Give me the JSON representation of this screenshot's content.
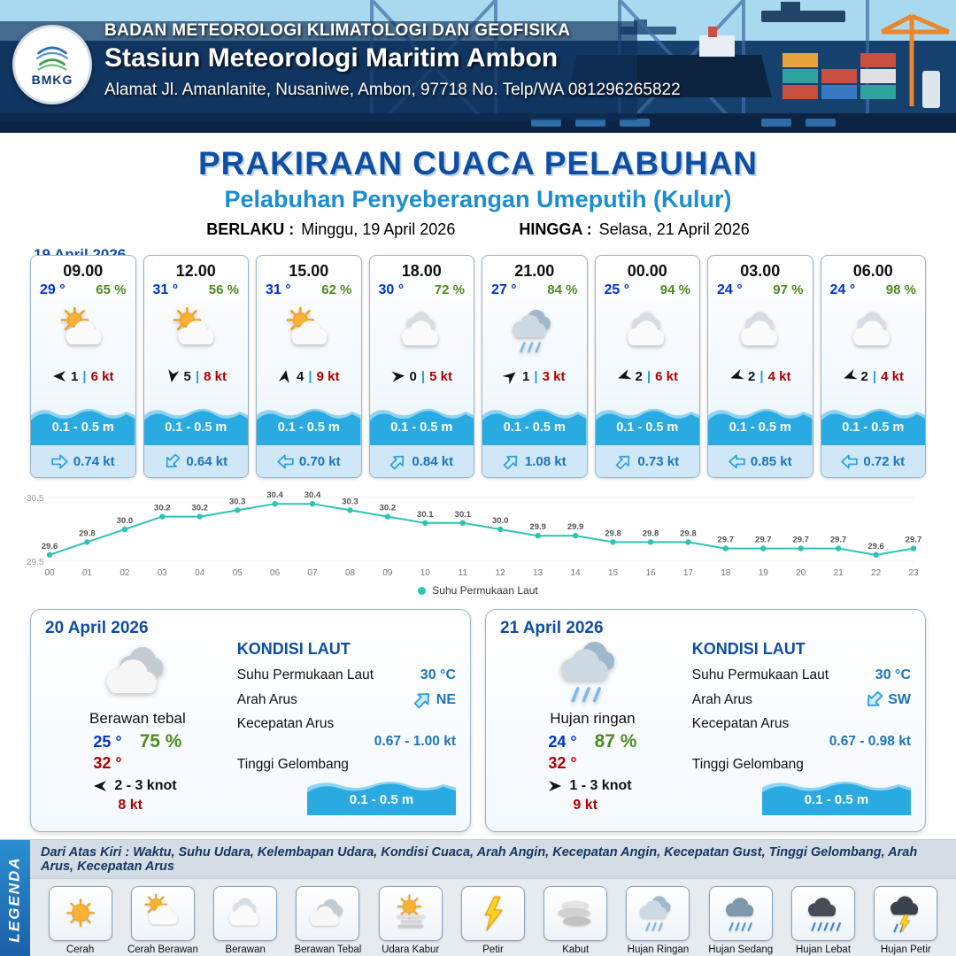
{
  "header": {
    "logo_text": "BMKG",
    "agency": "BADAN METEOROLOGI KLIMATOLOGI DAN GEOFISIKA",
    "station": "Stasiun Meteorologi Maritim Ambon",
    "address": "Alamat Jl. Amanlanite, Nusaniwe, Ambon, 97718   No. Telp/WA  081296265822"
  },
  "title": {
    "main": "PRAKIRAAN CUACA PELABUHAN",
    "subtitle": "Pelabuhan Penyeberangan Umeputih (Kulur)",
    "berlaku_label": "BERLAKU :",
    "berlaku_value": "Minggu, 19 April 2026",
    "hingga_label": "HINGGA :",
    "hingga_value": "Selasa, 21 April 2026",
    "forecast_date": "19 April 2026"
  },
  "hourly_cards": [
    {
      "time": "09.00",
      "temp": "29 °",
      "humidity": "65 %",
      "icon": "cerah-berawan",
      "wind_rot": 180,
      "wind_speed": "1",
      "gust": "6 kt",
      "wave": "0.1 - 0.5 m",
      "current_rot": 0,
      "current": "0.74 kt"
    },
    {
      "time": "12.00",
      "temp": "31 °",
      "humidity": "56 %",
      "icon": "cerah-berawan",
      "wind_rot": 100,
      "wind_speed": "5",
      "gust": "8 kt",
      "wave": "0.1 - 0.5 m",
      "current_rot": 135,
      "current": "0.64 kt"
    },
    {
      "time": "15.00",
      "temp": "31 °",
      "humidity": "62 %",
      "icon": "cerah-berawan",
      "wind_rot": -80,
      "wind_speed": "4",
      "gust": "9 kt",
      "wave": "0.1 - 0.5 m",
      "current_rot": 180,
      "current": "0.70 kt"
    },
    {
      "time": "18.00",
      "temp": "30 °",
      "humidity": "72 %",
      "icon": "berawan",
      "wind_rot": -5,
      "wind_speed": "0",
      "gust": "5 kt",
      "wave": "0.1 - 0.5 m",
      "current_rot": -45,
      "current": "0.84 kt"
    },
    {
      "time": "21.00",
      "temp": "27 °",
      "humidity": "84 %",
      "icon": "hujan-ringan",
      "wind_rot": -40,
      "wind_speed": "1",
      "gust": "3 kt",
      "wave": "0.1 - 0.5 m",
      "current_rot": -45,
      "current": "1.08 kt"
    },
    {
      "time": "00.00",
      "temp": "25 °",
      "humidity": "94 %",
      "icon": "berawan",
      "wind_rot": 160,
      "wind_speed": "2",
      "gust": "6 kt",
      "wave": "0.1 - 0.5 m",
      "current_rot": -45,
      "current": "0.73 kt"
    },
    {
      "time": "03.00",
      "temp": "24 °",
      "humidity": "97 %",
      "icon": "berawan",
      "wind_rot": 160,
      "wind_speed": "2",
      "gust": "4 kt",
      "wave": "0.1 - 0.5 m",
      "current_rot": 180,
      "current": "0.85 kt"
    },
    {
      "time": "06.00",
      "temp": "24 °",
      "humidity": "98 %",
      "icon": "berawan",
      "wind_rot": 160,
      "wind_speed": "2",
      "gust": "4 kt",
      "wave": "0.1 - 0.5 m",
      "current_rot": 180,
      "current": "0.72 kt"
    }
  ],
  "chart_data": {
    "type": "line",
    "legend": "Suhu Permukaan Laut",
    "x": [
      "00",
      "01",
      "02",
      "03",
      "04",
      "05",
      "06",
      "07",
      "08",
      "09",
      "10",
      "11",
      "12",
      "13",
      "14",
      "15",
      "16",
      "17",
      "18",
      "19",
      "20",
      "21",
      "22",
      "23"
    ],
    "values": [
      29.6,
      29.8,
      30.0,
      30.2,
      30.2,
      30.3,
      30.4,
      30.4,
      30.3,
      30.2,
      30.1,
      30.1,
      30.0,
      29.9,
      29.9,
      29.8,
      29.8,
      29.8,
      29.7,
      29.7,
      29.7,
      29.7,
      29.6,
      29.7
    ],
    "ylim": [
      29.5,
      30.5
    ],
    "line_color": "#2cc5b2",
    "grid": false,
    "legend_position": "bottom"
  },
  "daily_cards": [
    {
      "date": "20 April 2026",
      "icon": "berawan-tebal",
      "condition": "Berawan tebal",
      "temp_min": "25 °",
      "humidity": "75 %",
      "temp_max": "32 °",
      "wind_rot": 180,
      "wind_range": "2  - 3 knot",
      "gust": "8 kt",
      "sea": {
        "title": "KONDISI LAUT",
        "sst_label": "Suhu Permukaan Laut",
        "sst_value": "30 °C",
        "current_dir_label": "Arah Arus",
        "current_dir": "NE",
        "current_rot": -45,
        "current_speed_label": "Kecepatan Arus",
        "current_speed": "0.67 - 1.00 kt",
        "wave_label": "Tinggi Gelombang",
        "wave_value": "0.1 - 0.5 m"
      }
    },
    {
      "date": "21 April 2026",
      "icon": "hujan-ringan",
      "condition": "Hujan ringan",
      "temp_min": "24 °",
      "humidity": "87 %",
      "temp_max": "32 °",
      "wind_rot": 0,
      "wind_range": "1  - 3 knot",
      "gust": "9 kt",
      "sea": {
        "title": "KONDISI LAUT",
        "sst_label": "Suhu Permukaan Laut",
        "sst_value": "30 °C",
        "current_dir_label": "Arah Arus",
        "current_dir": "SW",
        "current_rot": 135,
        "current_speed_label": "Kecepatan Arus",
        "current_speed": "0.67 - 0.98 kt",
        "wave_label": "Tinggi Gelombang",
        "wave_value": "0.1 - 0.5 m"
      }
    }
  ],
  "legend": {
    "title": "LEGENDA",
    "note": "Dari Atas Kiri : Waktu, Suhu Udara, Kelembapan Udara, Kondisi Cuaca, Arah Angin, Kecepatan Angin, Kecepatan Gust, Tinggi Gelombang, Arah Arus, Kecepatan Arus",
    "items": [
      {
        "label": "Cerah",
        "icon": "cerah"
      },
      {
        "label": "Cerah Berawan",
        "icon": "cerah-berawan"
      },
      {
        "label": "Berawan",
        "icon": "berawan"
      },
      {
        "label": "Berawan Tebal",
        "icon": "berawan-tebal"
      },
      {
        "label": "Udara Kabur",
        "icon": "udara-kabur"
      },
      {
        "label": "Petir",
        "icon": "petir"
      },
      {
        "label": "Kabut",
        "icon": "kabut"
      },
      {
        "label": "Hujan Ringan",
        "icon": "hujan-ringan"
      },
      {
        "label": "Hujan Sedang",
        "icon": "hujan-sedang"
      },
      {
        "label": "Hujan Lebat",
        "icon": "hujan-lebat"
      },
      {
        "label": "Hujan Petir",
        "icon": "hujan-petir"
      }
    ]
  },
  "colors": {
    "header_bg": "#14365f",
    "title_blue": "#0e4ea3",
    "subtitle_blue": "#1b8ed2",
    "temp_blue": "#0033cc",
    "humidity_green": "#4e8b1f",
    "wind_red": "#b00000",
    "wave_blue": "#29abe2",
    "card_footer_blue": "#cfe7f6",
    "sst_line": "#2cc5b2",
    "legend_bar_blue": "#1b75bb"
  }
}
